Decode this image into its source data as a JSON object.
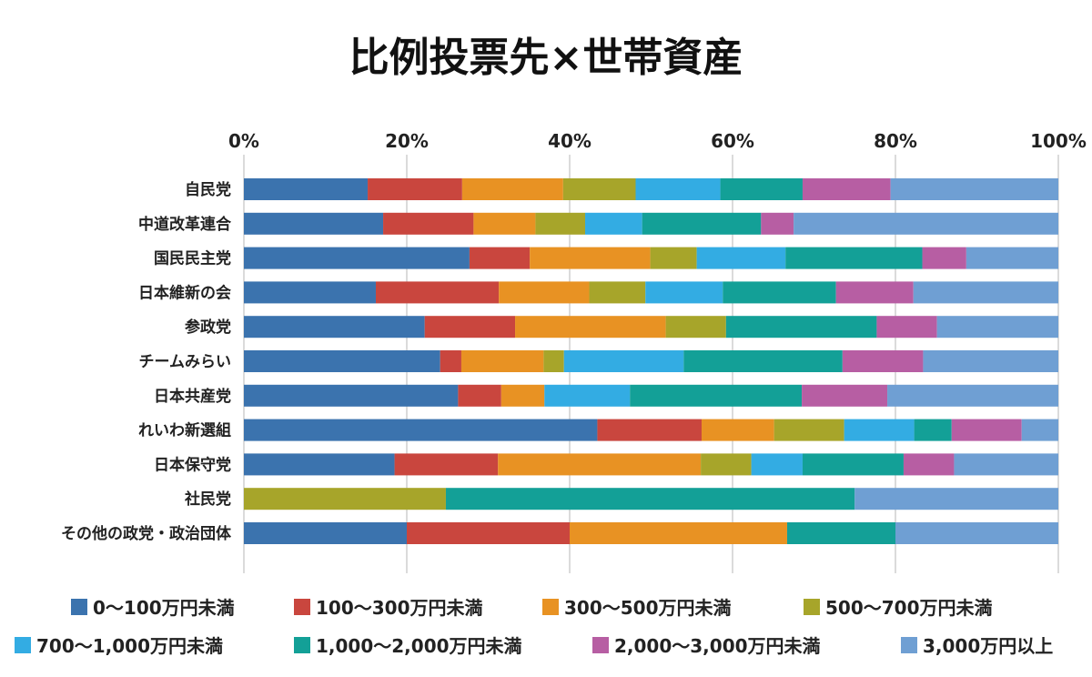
{
  "chart_data": {
    "type": "bar",
    "orientation": "horizontal",
    "stacked": "percent",
    "title": "比例投票先×世帯資産",
    "xlim": [
      0,
      100
    ],
    "x_ticks": [
      "0%",
      "20%",
      "40%",
      "60%",
      "80%",
      "100%"
    ],
    "grid": true,
    "legend_position": "bottom",
    "categories": [
      "自民党",
      "中道改革連合",
      "国民民主党",
      "日本維新の会",
      "参政党",
      "チームみらい",
      "日本共産党",
      "れいわ新選組",
      "日本保守党",
      "社民党",
      "その他の政党・政治団体"
    ],
    "series": [
      {
        "name": "0〜100万円未満",
        "color": "#3b73ae",
        "values": [
          15.2,
          17.1,
          27.7,
          16.2,
          22.2,
          24.1,
          26.3,
          43.4,
          18.5,
          0,
          20.0
        ]
      },
      {
        "name": "100〜300万円未満",
        "color": "#c9463e",
        "values": [
          11.6,
          11.1,
          7.4,
          15.1,
          11.1,
          2.6,
          5.3,
          12.8,
          12.7,
          0,
          20.0
        ]
      },
      {
        "name": "300〜500万円未満",
        "color": "#e89223",
        "values": [
          12.4,
          7.6,
          14.8,
          11.1,
          18.5,
          10.1,
          5.3,
          8.9,
          24.9,
          0,
          26.7
        ]
      },
      {
        "name": "500〜700万円未満",
        "color": "#a7a52a",
        "values": [
          8.9,
          6.1,
          5.7,
          6.9,
          7.4,
          2.5,
          0,
          8.6,
          6.2,
          24.8,
          0
        ]
      },
      {
        "name": "700〜1,000万円未満",
        "color": "#33ace3",
        "values": [
          10.4,
          7.0,
          10.9,
          9.5,
          0,
          14.7,
          10.5,
          8.6,
          6.3,
          0,
          0
        ]
      },
      {
        "name": "1,000〜2,000万円未満",
        "color": "#13a097",
        "values": [
          10.1,
          14.6,
          16.8,
          13.9,
          18.5,
          19.5,
          21.1,
          4.6,
          12.4,
          50.2,
          13.3
        ]
      },
      {
        "name": "2,000〜3,000万円未満",
        "color": "#b75ea3",
        "values": [
          10.8,
          4.0,
          5.4,
          9.5,
          7.4,
          9.9,
          10.5,
          8.6,
          6.2,
          0,
          0
        ]
      },
      {
        "name": "3,000万円以上",
        "color": "#6f9fd3",
        "values": [
          20.6,
          32.5,
          11.3,
          17.8,
          14.9,
          16.6,
          21.0,
          4.5,
          12.8,
          25.0,
          20.0
        ]
      }
    ]
  }
}
